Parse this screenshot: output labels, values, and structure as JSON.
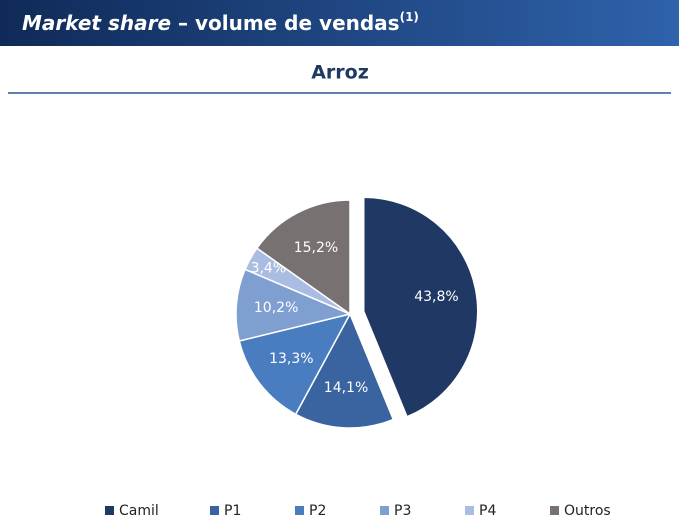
{
  "header": {
    "title_italic": "Market share",
    "title_rest": "– volume de vendas",
    "superscript": "(1)"
  },
  "chart_data": {
    "type": "pie",
    "title": "Arroz",
    "categories": [
      "Camil",
      "P1",
      "P2",
      "P3",
      "P4",
      "Outros"
    ],
    "values": [
      43.8,
      14.1,
      13.3,
      10.2,
      3.4,
      15.2
    ],
    "value_labels": [
      "43,8%",
      "14,1%",
      "13,3%",
      "10,2%",
      "3,4%",
      "15,2%"
    ],
    "colors": [
      "#1f3864",
      "#3a64a0",
      "#4a7cc0",
      "#7f9fd1",
      "#a9bde3",
      "#777171"
    ],
    "legend": "bottom"
  }
}
